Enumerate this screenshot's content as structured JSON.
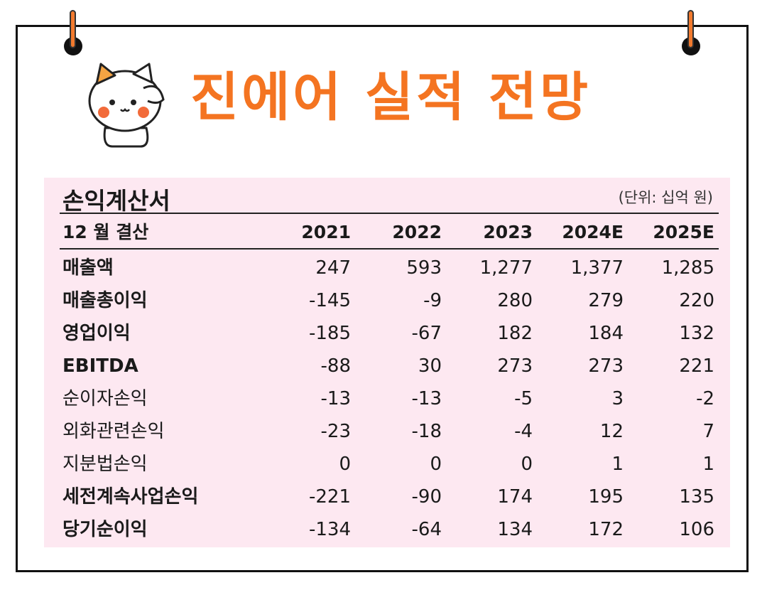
{
  "title": "진에어 실적 전망",
  "statement": {
    "name": "손익계산서",
    "unit": "(단위: 십억 원)",
    "header_label": "12 월 결산",
    "years": [
      "2021",
      "2022",
      "2023",
      "2024E",
      "2025E"
    ],
    "rows": [
      {
        "label": "매출액",
        "bold": true,
        "values": [
          "247",
          "593",
          "1,277",
          "1,377",
          "1,285"
        ]
      },
      {
        "label": "매출총이익",
        "bold": true,
        "values": [
          "-145",
          "-9",
          "280",
          "279",
          "220"
        ]
      },
      {
        "label": "영업이익",
        "bold": true,
        "values": [
          "-185",
          "-67",
          "182",
          "184",
          "132"
        ]
      },
      {
        "label": "EBITDA",
        "bold": true,
        "values": [
          "-88",
          "30",
          "273",
          "273",
          "221"
        ]
      },
      {
        "label": "순이자손익",
        "bold": false,
        "values": [
          "-13",
          "-13",
          "-5",
          "3",
          "-2"
        ]
      },
      {
        "label": "외화관련손익",
        "bold": false,
        "values": [
          "-23",
          "-18",
          "-4",
          "12",
          "7"
        ]
      },
      {
        "label": "지분법손익",
        "bold": false,
        "values": [
          "0",
          "0",
          "0",
          "1",
          "1"
        ]
      },
      {
        "label": "세전계속사업손익",
        "bold": true,
        "values": [
          "-221",
          "-90",
          "174",
          "195",
          "135"
        ]
      },
      {
        "label": "당기순이익",
        "bold": true,
        "values": [
          "-134",
          "-64",
          "134",
          "172",
          "106"
        ]
      }
    ]
  },
  "colors": {
    "accent": "#f47421",
    "panel": "#fde8f1"
  },
  "icons": {
    "mascot": "saluting-cat-mascot"
  }
}
